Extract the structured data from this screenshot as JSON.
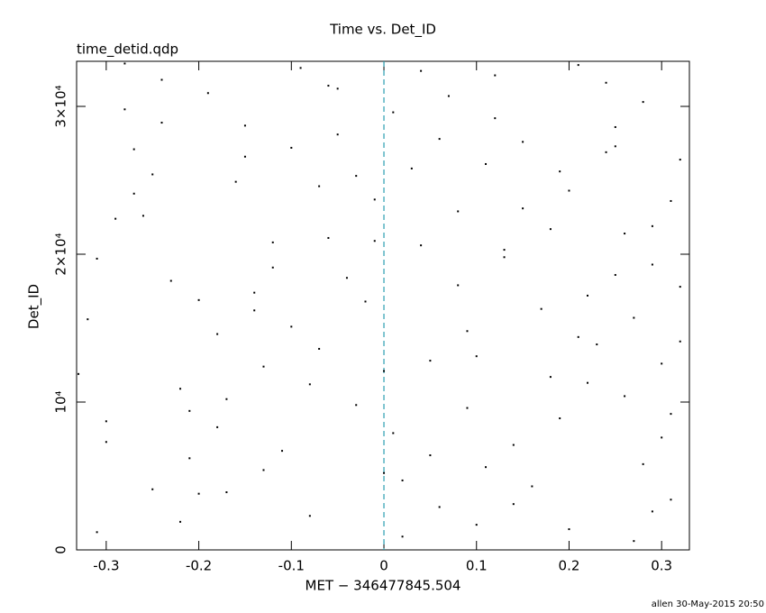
{
  "chart_data": {
    "type": "scatter",
    "title": "Time vs. Det_ID",
    "subtitle": "time_detid.qdp",
    "x_label": "MET − 346477845.504",
    "y_label": "Det_ID",
    "footer": "allen 30-May-2015 20:50",
    "color": "#000000",
    "vline": {
      "x": 0,
      "color": "#2a9db0"
    },
    "xlim": [
      -0.332,
      0.33
    ],
    "ylim": [
      0,
      33050
    ],
    "xticks": [
      -0.3,
      -0.2,
      -0.1,
      0,
      0.1,
      0.2,
      0.3
    ],
    "yticks": [
      0,
      {
        "value": 10000,
        "label": "10⁴"
      },
      {
        "value": 20000,
        "label": "2×10⁴"
      },
      {
        "value": 30000,
        "label": "3×10⁴"
      }
    ],
    "x": [
      -0.31,
      -0.25,
      -0.18,
      -0.12,
      -0.05,
      0.02,
      0.09,
      0.15,
      0.22,
      0.29,
      -0.28,
      -0.21,
      -0.14,
      -0.08,
      -0.01,
      0.05,
      0.12,
      0.19,
      0.25,
      0.31,
      -0.32,
      -0.24,
      -0.17,
      -0.1,
      -0.03,
      0.04,
      0.1,
      0.17,
      0.24,
      0.3,
      -0.29,
      -0.22,
      -0.15,
      -0.07,
      0.0,
      0.07,
      0.13,
      0.2,
      0.27,
      0.32,
      -0.3,
      -0.23,
      -0.16,
      -0.09,
      -0.02,
      0.06,
      0.11,
      0.18,
      0.26,
      0.28,
      -0.27,
      -0.2,
      -0.13,
      -0.06,
      0.01,
      0.08,
      0.14,
      0.21,
      0.23,
      0.31,
      -0.33,
      -0.26,
      -0.19,
      -0.11,
      -0.04,
      0.03,
      0.1,
      0.16,
      0.25,
      0.29,
      -0.25,
      -0.18,
      -0.12,
      -0.05,
      0.02,
      0.09,
      0.15,
      0.22,
      0.28,
      0.32,
      -0.31,
      -0.24,
      -0.17,
      -0.1,
      -0.03,
      0.04,
      0.11,
      0.18,
      0.24,
      0.3,
      -0.28,
      -0.21,
      -0.14,
      -0.07,
      0.0,
      0.06,
      0.13,
      0.2,
      0.27,
      0.31,
      -0.3,
      -0.22,
      -0.15,
      -0.08,
      -0.01,
      0.05,
      0.12,
      0.19,
      0.26,
      0.32,
      -0.27,
      -0.2,
      -0.13,
      -0.06,
      0.01,
      0.08,
      0.14,
      0.21,
      0.25,
      0.29
    ],
    "values": [
      1200,
      25400,
      8300,
      19100,
      31200,
      4700,
      14800,
      27600,
      11300,
      21900,
      29800,
      6200,
      17400,
      2300,
      23700,
      12800,
      32100,
      8900,
      18600,
      3400,
      15600,
      31800,
      3900,
      27200,
      9800,
      20600,
      1700,
      16300,
      26900,
      7600,
      22400,
      10900,
      28700,
      13600,
      5200,
      30700,
      19800,
      24300,
      600,
      14100,
      7300,
      18200,
      24900,
      32600,
      16800,
      2900,
      26100,
      11700,
      21400,
      30300,
      27100,
      3800,
      12400,
      21100,
      29600,
      17900,
      7100,
      32800,
      13900,
      9200,
      11900,
      22600,
      30900,
      6700,
      18400,
      25800,
      13100,
      4300,
      28600,
      19300,
      4100,
      14600,
      20800,
      28100,
      900,
      9600,
      23100,
      17200,
      5800,
      26400,
      19700,
      28900,
      10200,
      15100,
      25300,
      32400,
      5600,
      21700,
      31600,
      12600,
      32900,
      9400,
      16200,
      24600,
      12100,
      27800,
      20300,
      1400,
      15700,
      23600,
      8700,
      1900,
      26600,
      11200,
      20900,
      6400,
      29200,
      25600,
      10400,
      17800,
      24100,
      16900,
      5400,
      31400,
      7900,
      22900,
      3100,
      14400,
      27300,
      2600
    ]
  }
}
